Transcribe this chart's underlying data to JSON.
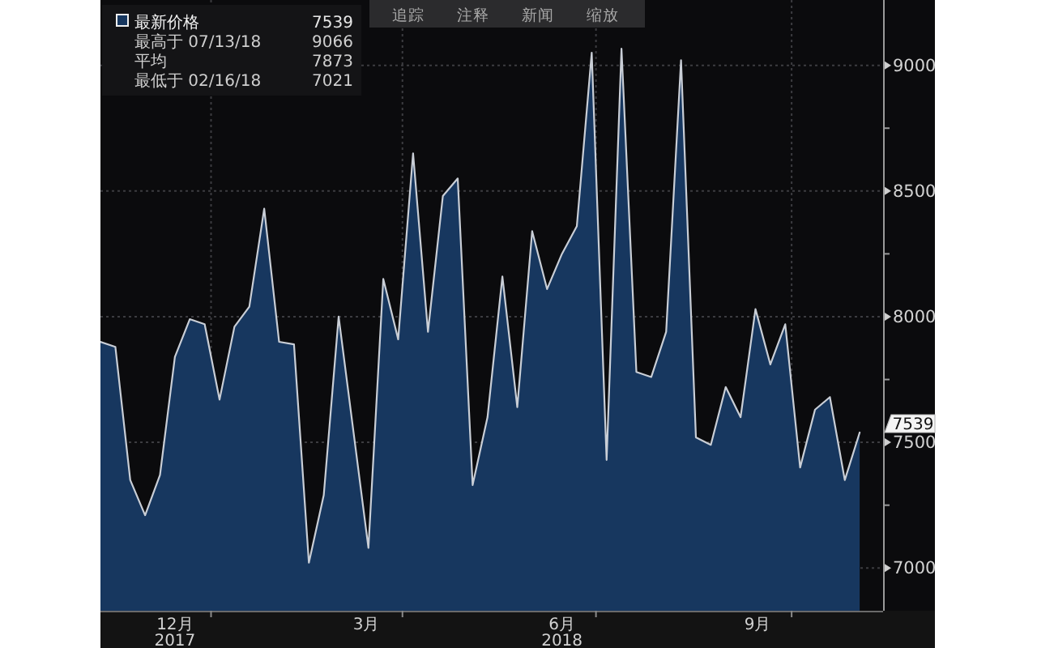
{
  "chart_data": {
    "type": "area",
    "x": [
      "2017-11-10",
      "2017-11-17",
      "2017-11-24",
      "2017-12-01",
      "2017-12-08",
      "2017-12-15",
      "2017-12-22",
      "2017-12-29",
      "2018-01-05",
      "2018-01-12",
      "2018-01-19",
      "2018-01-26",
      "2018-02-02",
      "2018-02-09",
      "2018-02-16",
      "2018-02-23",
      "2018-03-02",
      "2018-03-09",
      "2018-03-16",
      "2018-03-23",
      "2018-03-30",
      "2018-04-06",
      "2018-04-13",
      "2018-04-20",
      "2018-04-27",
      "2018-05-04",
      "2018-05-11",
      "2018-05-18",
      "2018-05-25",
      "2018-06-01",
      "2018-06-08",
      "2018-06-15",
      "2018-06-22",
      "2018-06-29",
      "2018-07-06",
      "2018-07-13",
      "2018-07-20",
      "2018-07-27",
      "2018-08-03",
      "2018-08-10",
      "2018-08-17",
      "2018-08-24",
      "2018-08-31",
      "2018-09-07",
      "2018-09-14",
      "2018-09-21",
      "2018-09-28",
      "2018-10-05",
      "2018-10-12",
      "2018-10-19",
      "2018-10-26",
      "2018-11-02"
    ],
    "series": [
      {
        "name": "最新价格",
        "color": "#17375f",
        "values": [
          7900,
          7880,
          7350,
          7210,
          7370,
          7840,
          7990,
          7970,
          7670,
          7960,
          8040,
          8430,
          7900,
          7890,
          7021,
          7290,
          8000,
          7540,
          7080,
          8150,
          7910,
          8650,
          7940,
          8480,
          8550,
          7330,
          7600,
          8160,
          7640,
          8340,
          8110,
          8250,
          8360,
          9050,
          7430,
          9066,
          7780,
          7760,
          7940,
          9020,
          7520,
          7490,
          7720,
          7600,
          8030,
          7810,
          7970,
          7400,
          7630,
          7680,
          7350,
          7539
        ]
      }
    ],
    "xlim": [
      "2017-11-10",
      "2018-11-13"
    ],
    "ylim": [
      6830,
      9260
    ],
    "xticks": [
      {
        "value": "2017-12-15",
        "label": "12月\n2017"
      },
      {
        "value": "2018-01-01",
        "label": null
      },
      {
        "value": "2018-03-15",
        "label": "3月"
      },
      {
        "value": "2018-04-01",
        "label": null
      },
      {
        "value": "2018-06-15",
        "label": "6月\n2018"
      },
      {
        "value": "2018-07-01",
        "label": null
      },
      {
        "value": "2018-09-15",
        "label": "9月"
      },
      {
        "value": "2018-10-01",
        "label": null
      }
    ],
    "yticks": [
      7000,
      {
        "value": 7250,
        "label": null
      },
      7500,
      {
        "value": 7750,
        "label": null
      },
      8000,
      {
        "value": 8250,
        "label": null
      },
      8500,
      {
        "value": 8750,
        "label": null
      },
      9000
    ],
    "grid": true,
    "legend": "top left",
    "annotations": [
      {
        "text": "7539",
        "x": "2018-11-02",
        "y": 7539
      },
      "7539",
      "最高于 07/13/18 9066",
      "平均 7873",
      "最低于 02/16/18 7021",
      "追踪",
      "注释",
      "新闻",
      "缩放"
    ]
  }
}
